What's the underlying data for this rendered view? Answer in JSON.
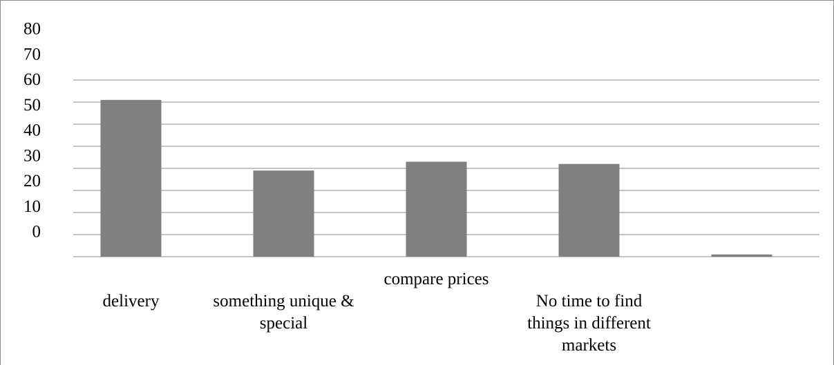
{
  "chart_data": {
    "type": "bar",
    "categories": [
      "delivery",
      "something unique & special",
      "compare prices",
      "No time to find things in different markets",
      null
    ],
    "values": [
      71,
      39,
      43,
      42,
      1
    ],
    "color": "#7f7f7f",
    "ylim": [
      0,
      80
    ],
    "yticks": [
      0,
      10,
      20,
      30,
      40,
      50,
      60,
      70,
      80
    ],
    "grid": true
  }
}
